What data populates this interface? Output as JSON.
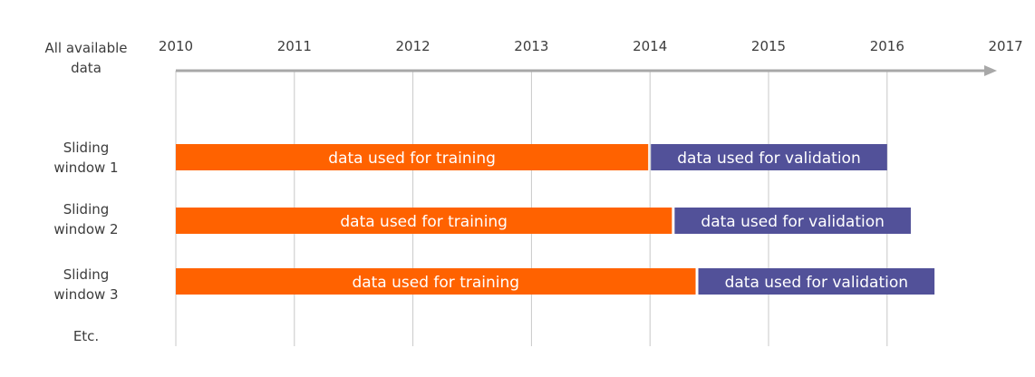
{
  "timeline": {
    "label": "All available\ndata",
    "years": [
      "2010",
      "2011",
      "2012",
      "2013",
      "2014",
      "2015",
      "2016",
      "2017"
    ]
  },
  "windows": [
    {
      "label": "Sliding\nwindow 1",
      "training": {
        "label": "data used for training",
        "start": 2010.0,
        "end": 2014.0
      },
      "validation": {
        "label": "data used for validation",
        "start": 2014.0,
        "end": 2016.0
      }
    },
    {
      "label": "Sliding\nwindow 2",
      "training": {
        "label": "data used for training",
        "start": 2010.0,
        "end": 2014.2
      },
      "validation": {
        "label": "data used for validation",
        "start": 2014.2,
        "end": 2016.2
      }
    },
    {
      "label": "Sliding\nwindow 3",
      "training": {
        "label": "data used for training",
        "start": 2010.0,
        "end": 2014.4
      },
      "validation": {
        "label": "data used for validation",
        "start": 2014.4,
        "end": 2016.4
      }
    }
  ],
  "etc_label": "Etc.",
  "colors": {
    "training": "#ff6200",
    "validation": "#525199",
    "axis": "#a8a8a8",
    "gridline": "#c8c8c8",
    "text": "#3c3c3c",
    "bar_text": "#ffffff"
  }
}
